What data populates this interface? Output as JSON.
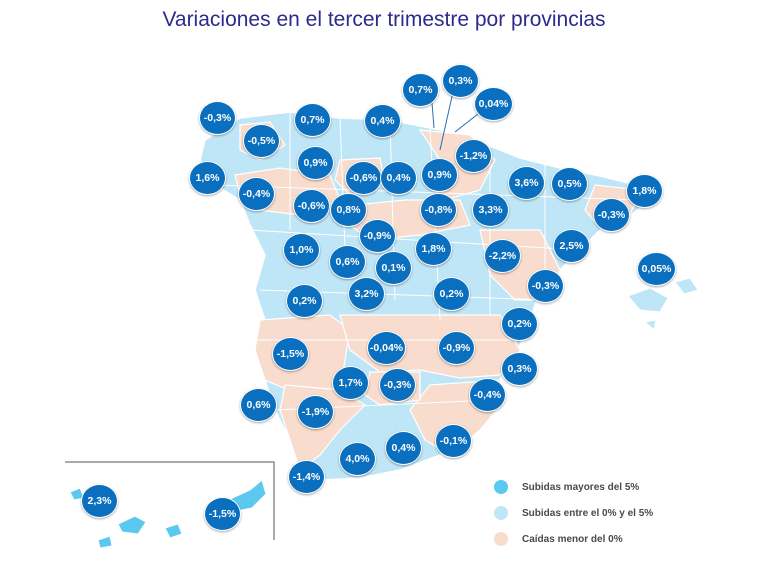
{
  "title": "Variaciones en el tercer trimestre por provincias",
  "colors": {
    "strong_rise": "#5bc8f0",
    "moderate_rise": "#bfe6f7",
    "fall": "#f8dccd",
    "bubble": "#0a6fbf",
    "title": "#2e2a8c"
  },
  "legend": [
    {
      "label": "Subidas mayores del 5%",
      "color": "#5bc8f0"
    },
    {
      "label": "Subidas entre el 0% y el 5%",
      "color": "#bfe6f7"
    },
    {
      "label": "Caídas menor del 0%",
      "color": "#f8dccd"
    }
  ],
  "provinces": [
    {
      "id": "coruna",
      "value": "-0,3%"
    },
    {
      "id": "lugo",
      "value": "-0,5%"
    },
    {
      "id": "asturias",
      "value": "0,7%"
    },
    {
      "id": "cantabria",
      "value": "0,4%"
    },
    {
      "id": "vizcaya",
      "value": "0,7%"
    },
    {
      "id": "guipuzcoa",
      "value": "0,3%"
    },
    {
      "id": "alava",
      "value": "0,04%"
    },
    {
      "id": "pontevedra",
      "value": "1,6%"
    },
    {
      "id": "ourense",
      "value": "-0,4%"
    },
    {
      "id": "leon",
      "value": "0,9%"
    },
    {
      "id": "palencia",
      "value": "-0,6%"
    },
    {
      "id": "burgos",
      "value": "0,4%"
    },
    {
      "id": "larioja",
      "value": "0,9%"
    },
    {
      "id": "navarra",
      "value": "-1,2%"
    },
    {
      "id": "huesca",
      "value": "3,6%"
    },
    {
      "id": "lleida",
      "value": "0,5%"
    },
    {
      "id": "girona",
      "value": "1,8%"
    },
    {
      "id": "barcelona",
      "value": "-0,3%"
    },
    {
      "id": "zamora",
      "value": "-0,6%"
    },
    {
      "id": "valladolid",
      "value": "0,8%"
    },
    {
      "id": "soria",
      "value": "-0,8%"
    },
    {
      "id": "zaragoza",
      "value": "3,3%"
    },
    {
      "id": "segovia",
      "value": "-0,9%"
    },
    {
      "id": "salamanca",
      "value": "1,0%"
    },
    {
      "id": "avila",
      "value": "0,6%"
    },
    {
      "id": "madrid",
      "value": "0,1%"
    },
    {
      "id": "guadalajara",
      "value": "1,8%"
    },
    {
      "id": "teruel",
      "value": "-2,2%"
    },
    {
      "id": "tarragona",
      "value": "2,5%"
    },
    {
      "id": "castellon",
      "value": "-0,3%"
    },
    {
      "id": "baleares",
      "value": "0,05%"
    },
    {
      "id": "caceres",
      "value": "0,2%"
    },
    {
      "id": "toledo",
      "value": "3,2%"
    },
    {
      "id": "cuenca",
      "value": "0,2%"
    },
    {
      "id": "valencia",
      "value": "0,2%"
    },
    {
      "id": "badajoz",
      "value": "-1,5%"
    },
    {
      "id": "ciudadreal",
      "value": "-0,04%"
    },
    {
      "id": "albacete",
      "value": "-0,9%"
    },
    {
      "id": "alicante",
      "value": "0,3%"
    },
    {
      "id": "cordoba",
      "value": "1,7%"
    },
    {
      "id": "jaen",
      "value": "-0,3%"
    },
    {
      "id": "murcia",
      "value": "-0,4%"
    },
    {
      "id": "huelva",
      "value": "0,6%"
    },
    {
      "id": "sevilla",
      "value": "-1,9%"
    },
    {
      "id": "malaga",
      "value": "4,0%"
    },
    {
      "id": "granada",
      "value": "0,4%"
    },
    {
      "id": "almeria",
      "value": "-0,1%"
    },
    {
      "id": "cadiz",
      "value": "-1,4%"
    },
    {
      "id": "tenerife",
      "value": "2,3%"
    },
    {
      "id": "laspalmas",
      "value": "-1,5%"
    }
  ]
}
